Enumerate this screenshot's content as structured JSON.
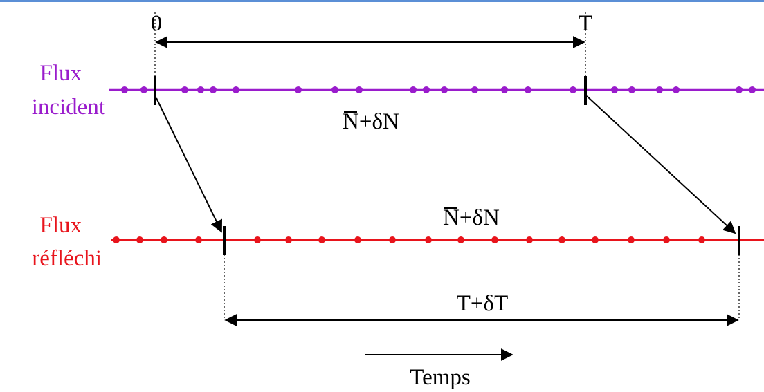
{
  "labels": {
    "t0": "0",
    "tT": "T",
    "n_incident": "N+δN",
    "n_reflected": "N+δN",
    "n_bar_symbol": "N",
    "period_reflected": "T+δT",
    "time_axis": "Temps",
    "incident_line1": "Flux",
    "incident_line2": "incident",
    "reflected_line1": "Flux",
    "reflected_line2": "réfléchi"
  },
  "colors": {
    "incident": "#9a1ccc",
    "reflected": "#e8141c",
    "ink": "#000000",
    "top_rule": "#5b8fd6"
  }
}
